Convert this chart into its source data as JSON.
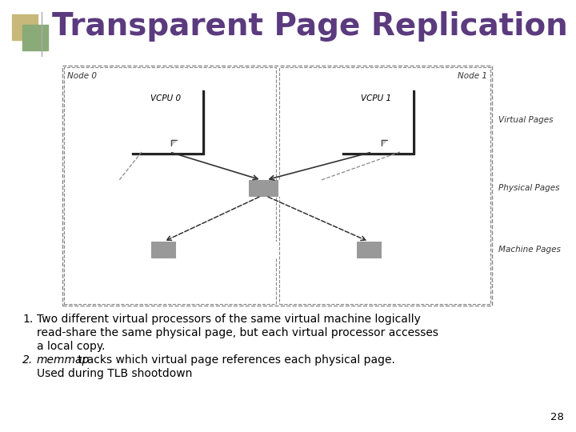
{
  "title": "Transparent Page Replication",
  "title_color": "#5b3a7e",
  "title_fontsize": 28,
  "bg_color": "#ffffff",
  "page_num": "28",
  "node0_label": "Node 0",
  "node1_label": "Node 1",
  "vcpu0_label": "VCPU 0",
  "vcpu1_label": "VCPU 1",
  "vp_label": "Virtual Pages",
  "pp_label": "Physical Pages",
  "mp_label": "Machine Pages",
  "gray_color": "#999999",
  "text_color": "#000000",
  "dec_colors": [
    "#d4b896",
    "#a09050",
    "#8ab080",
    "#c8c870"
  ]
}
